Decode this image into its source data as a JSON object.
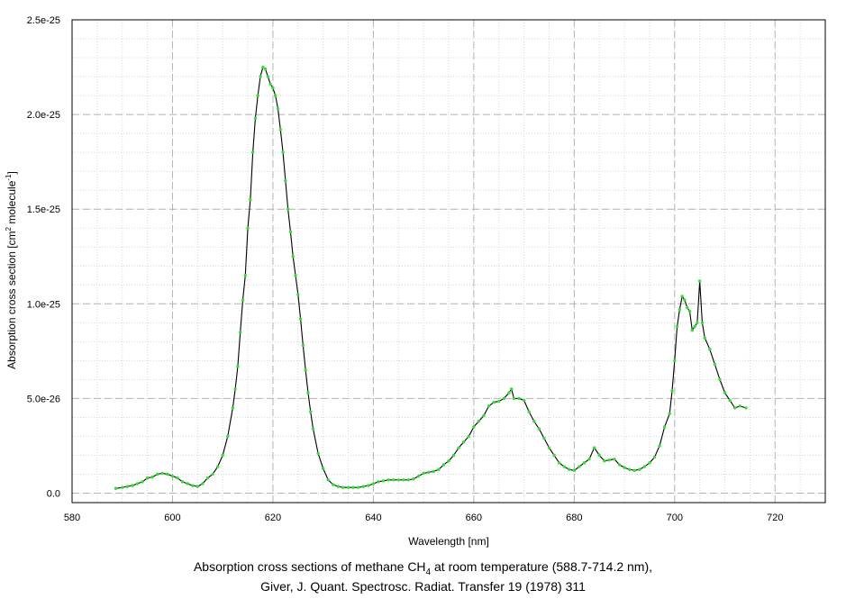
{
  "chart_data": {
    "type": "line",
    "title": "",
    "caption_line1_pre": "Absorption cross sections of methane CH",
    "caption_line1_sub": "4",
    "caption_line1_post": " at room temperature (588.7-714.2 nm),",
    "caption_line2": "Giver, J. Quant. Spectrosc. Radiat. Transfer 19 (1978) 311",
    "xlabel": "Wavelength [nm]",
    "ylabel_pre": "Absorption cross section [cm",
    "ylabel_sup1": "2",
    "ylabel_mid": " molecule",
    "ylabel_sup2": "-1",
    "ylabel_post": "]",
    "xlim": [
      580,
      730
    ],
    "ylim": [
      -5e-27,
      2.5e-25
    ],
    "x_ticks": [
      580,
      600,
      620,
      640,
      660,
      680,
      700,
      720
    ],
    "x_tick_labels": [
      "580",
      "600",
      "620",
      "640",
      "660",
      "680",
      "700",
      "720"
    ],
    "y_ticks": [
      0,
      5e-26,
      1e-25,
      1.5e-25,
      2e-25,
      2.5e-25
    ],
    "y_tick_labels": [
      "0.0",
      "5.0e-26",
      "1.0e-25",
      "1.5e-25",
      "2.0e-25",
      "2.5e-25"
    ],
    "grid": true,
    "line_color": "#000000",
    "marker_color": "#33dd33",
    "series": [
      {
        "x": [
          588.7,
          590,
          591,
          592,
          593,
          594,
          595,
          596,
          597,
          598,
          599,
          600,
          601,
          602,
          603,
          604,
          605,
          606,
          607,
          608,
          609,
          610,
          611,
          612,
          612.5,
          613,
          613.5,
          614,
          614.5,
          615,
          615.5,
          616,
          616.5,
          617,
          617.5,
          618,
          618.5,
          619,
          619.5,
          620,
          620.5,
          621,
          621.5,
          622,
          622.5,
          623,
          623.5,
          624,
          624.5,
          625,
          625.5,
          626,
          626.5,
          627,
          627.5,
          628,
          629,
          630,
          631,
          632,
          633,
          634,
          635,
          636,
          637,
          638,
          639,
          640,
          641,
          642,
          643,
          644,
          645,
          646,
          647,
          648,
          649,
          650,
          651,
          652,
          653,
          654,
          655,
          656,
          657,
          658,
          659,
          660,
          661,
          662,
          663,
          664,
          665,
          666,
          667,
          667.5,
          668,
          669,
          670,
          671,
          672,
          673,
          674,
          675,
          676,
          677,
          678,
          679,
          680,
          681,
          682,
          683,
          684,
          685,
          686,
          687,
          688,
          689,
          690,
          691,
          692,
          693,
          694,
          695,
          696,
          697,
          698,
          699,
          699.5,
          700,
          700.5,
          701,
          701.5,
          702,
          702.5,
          703,
          703.5,
          704,
          704.5,
          705,
          705.5,
          706,
          707,
          708,
          709,
          710,
          711,
          712,
          713,
          714.2
        ],
        "y": [
          2.5e-27,
          3e-27,
          3.5e-27,
          4e-27,
          5e-27,
          6e-27,
          8e-27,
          8.5e-27,
          1e-26,
          1.05e-26,
          1e-26,
          9e-27,
          8e-27,
          6e-27,
          5e-27,
          4e-27,
          3.5e-27,
          5e-27,
          8e-27,
          1e-26,
          1.4e-26,
          2e-26,
          3e-26,
          4.5e-26,
          5.5e-26,
          6.7e-26,
          8.5e-26,
          1.02e-25,
          1.15e-25,
          1.4e-25,
          1.55e-25,
          1.8e-25,
          1.98e-25,
          2.1e-25,
          2.2e-25,
          2.25e-25,
          2.24e-25,
          2.2e-25,
          2.16e-25,
          2.14e-25,
          2.1e-25,
          2.03e-25,
          1.92e-25,
          1.8e-25,
          1.65e-25,
          1.5e-25,
          1.38e-25,
          1.25e-25,
          1.15e-25,
          1.05e-25,
          9.2e-26,
          7.8e-26,
          6.5e-26,
          5.3e-26,
          4.3e-26,
          3.4e-26,
          2.1e-26,
          1.3e-26,
          7e-27,
          4.5e-27,
          3.5e-27,
          3e-27,
          3e-27,
          3e-27,
          3e-27,
          3.5e-27,
          4e-27,
          5e-27,
          6e-27,
          6.5e-27,
          7e-27,
          7e-27,
          7e-27,
          7e-27,
          7e-27,
          7.5e-27,
          9e-27,
          1.05e-26,
          1.1e-26,
          1.15e-26,
          1.25e-26,
          1.5e-26,
          1.7e-26,
          2e-26,
          2.4e-26,
          2.7e-26,
          3e-26,
          3.5e-26,
          3.8e-26,
          4.1e-26,
          4.6e-26,
          4.8e-26,
          4.85e-26,
          5e-26,
          5.3e-26,
          5.5e-26,
          5e-26,
          5e-26,
          4.9e-26,
          4.3e-26,
          3.8e-26,
          3.4e-26,
          2.9e-26,
          2.4e-26,
          2e-26,
          1.6e-26,
          1.4e-26,
          1.25e-26,
          1.2e-26,
          1.4e-26,
          1.6e-26,
          1.8e-26,
          2.4e-26,
          2e-26,
          1.7e-26,
          1.75e-26,
          1.8e-26,
          1.5e-26,
          1.35e-26,
          1.25e-26,
          1.2e-26,
          1.25e-26,
          1.4e-26,
          1.6e-26,
          1.9e-26,
          2.5e-26,
          3.5e-26,
          4.2e-26,
          5.4e-26,
          7e-26,
          8.8e-26,
          9.7e-26,
          1.04e-25,
          1.02e-25,
          9.8e-26,
          9.6e-26,
          8.6e-26,
          8.8e-26,
          9e-26,
          1.12e-25,
          9e-26,
          8.2e-26,
          7.6e-26,
          6.8e-26,
          6e-26,
          5.3e-26,
          4.9e-26,
          4.5e-26,
          4.6e-26,
          4.5e-26
        ]
      }
    ]
  }
}
